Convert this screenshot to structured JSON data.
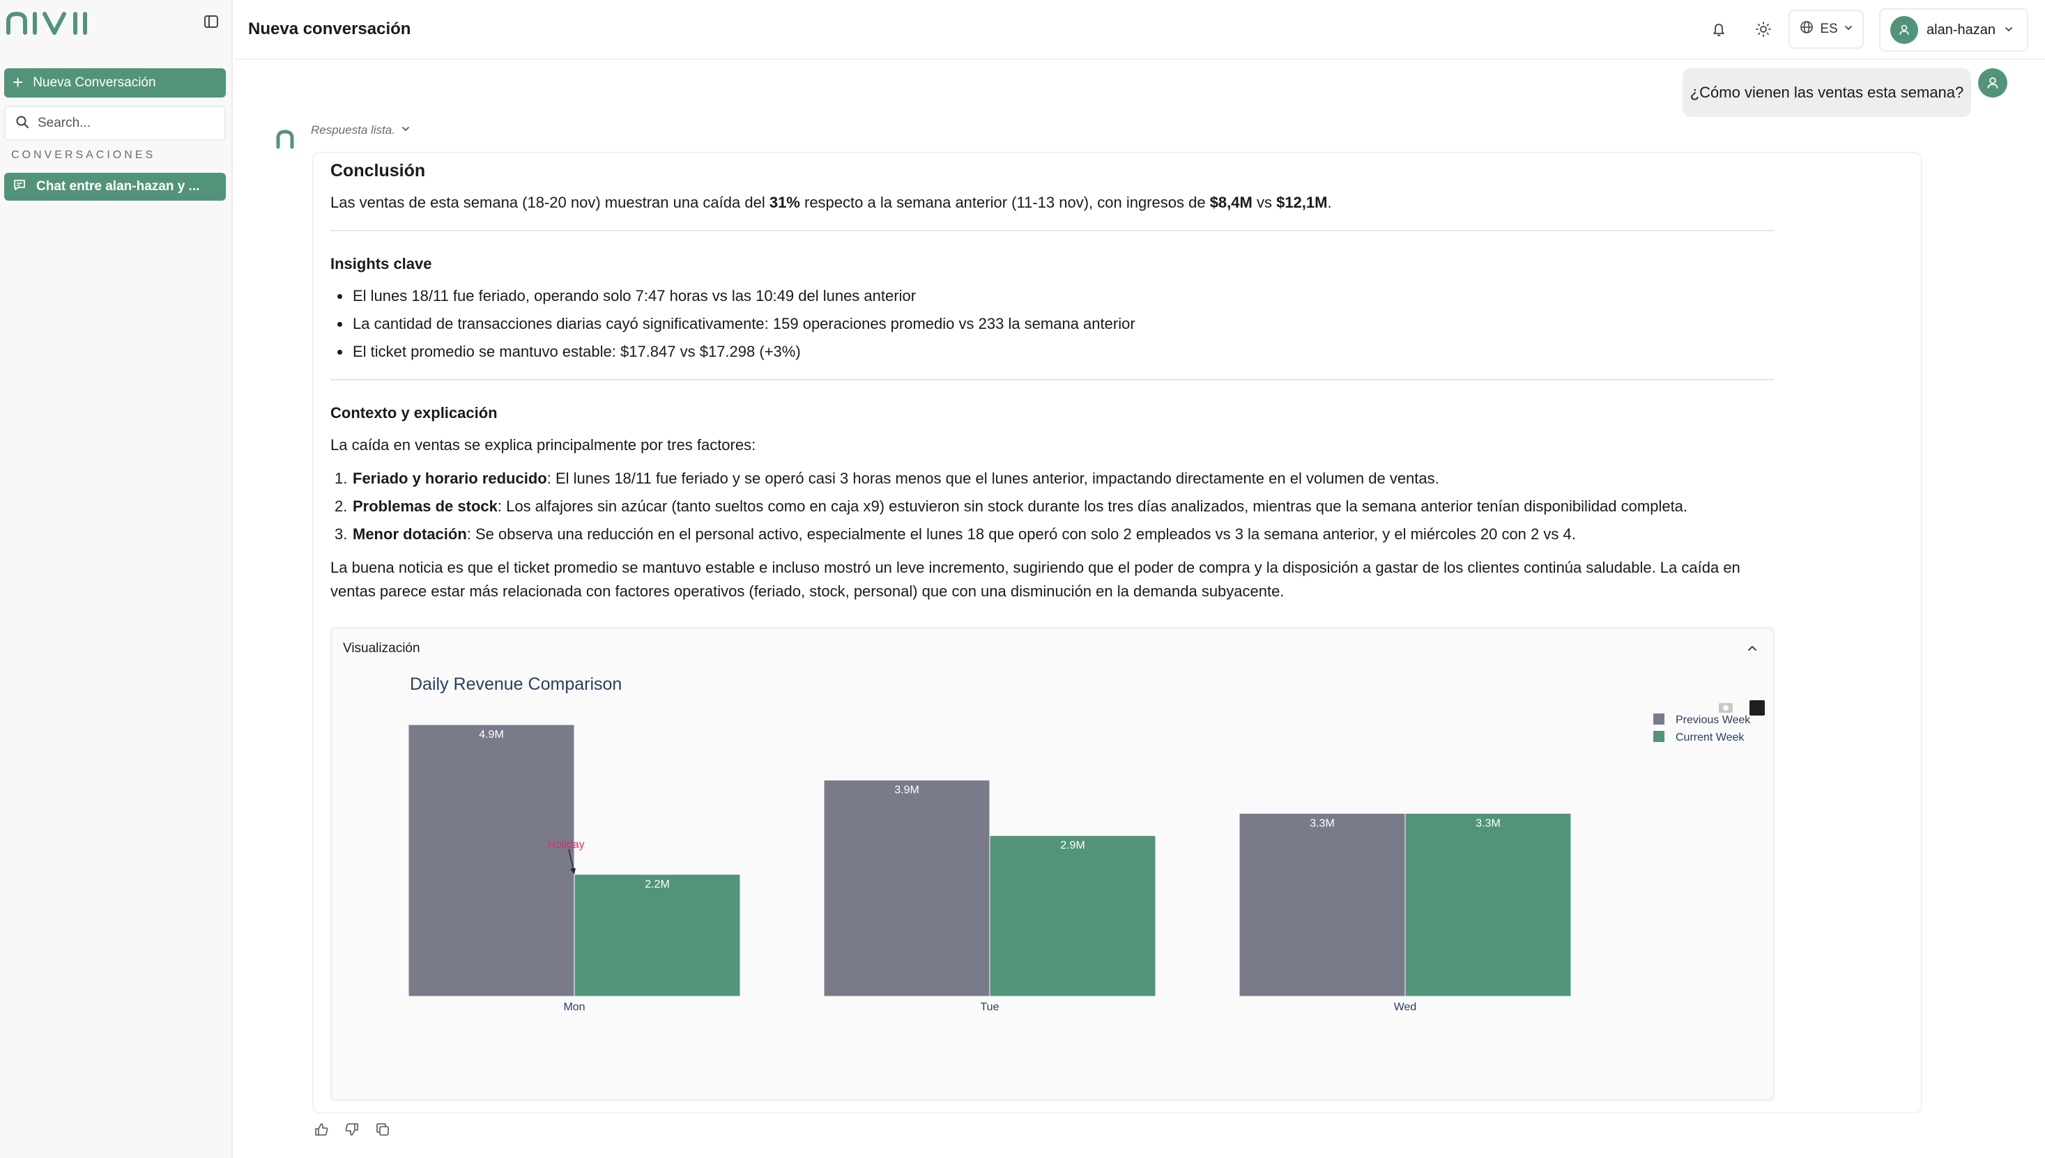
{
  "app": {
    "logo_text": "nivii",
    "accent_color": "#529479"
  },
  "sidebar": {
    "new_conversation_label": "Nueva Conversación",
    "search_placeholder": "Search...",
    "section_label": "CONVERSACIONES",
    "conversations": [
      {
        "label": "Chat entre alan-hazan y ..."
      }
    ]
  },
  "header": {
    "title": "Nueva conversación",
    "language": "ES",
    "username": "alan-hazan",
    "icons": [
      "bell-icon",
      "sun-icon",
      "globe-icon"
    ]
  },
  "chat": {
    "user_message": "¿Cómo vienen las ventas esta semana?",
    "bot_status": "Respuesta lista.",
    "answer": {
      "conclusion_title": "Conclusión",
      "conclusion_parts": {
        "a": "Las ventas de esta semana (18-20 nov) muestran una caída del ",
        "b": "31%",
        "c": " respecto a la semana anterior (11-13 nov), con ingresos de ",
        "d": "$8,4M",
        "e": " vs ",
        "f": "$12,1M",
        "g": "."
      },
      "insights_title": "Insights clave",
      "insights": [
        "El lunes 18/11 fue feriado, operando solo 7:47 horas vs las 10:49 del lunes anterior",
        "La cantidad de transacciones diarias cayó significativamente: 159 operaciones promedio vs 233 la semana anterior",
        "El ticket promedio se mantuvo estable: $17.847 vs $17.298 (+3%)"
      ],
      "context_title": "Contexto y explicación",
      "context_intro": "La caída en ventas se explica principalmente por tres factores:",
      "factors": [
        {
          "num": "1.",
          "title": "Feriado y horario reducido",
          "text": ": El lunes 18/11 fue feriado y se operó casi 3 horas menos que el lunes anterior, impactando directamente en el volumen de ventas."
        },
        {
          "num": "2.",
          "title": "Problemas de stock",
          "text": ": Los alfajores sin azúcar (tanto sueltos como en caja x9) estuvieron sin stock durante los tres días analizados, mientras que la semana anterior tenían disponibilidad completa."
        },
        {
          "num": "3.",
          "title": "Menor dotación",
          "text": ": Se observa una reducción en el personal activo, especialmente el lunes 18 que operó con solo 2 empleados vs 3 la semana anterior, y el miércoles 20 con 2 vs 4."
        }
      ],
      "closing": "La buena noticia es que el ticket promedio se mantuvo estable e incluso mostró un leve incremento, sugiriendo que el poder de compra y la disposición a gastar de los clientes continúa saludable. La caída en ventas parece estar más relacionada con factores operativos (feriado, stock, personal) que con una disminución en la demanda subyacente."
    },
    "visualization_label": "Visualización"
  },
  "chart_data": {
    "type": "bar",
    "title": "Daily Revenue Comparison",
    "categories": [
      "Mon",
      "Tue",
      "Wed"
    ],
    "series": [
      {
        "name": "Previous Week",
        "values": [
          4.9,
          3.9,
          3.3
        ],
        "labels": [
          "4.9M",
          "3.9M",
          "3.3M"
        ],
        "color": "#797b8b"
      },
      {
        "name": "Current Week",
        "values": [
          2.2,
          2.9,
          3.3
        ],
        "labels": [
          "2.2M",
          "2.9M",
          "3.3M"
        ],
        "color": "#529479"
      }
    ],
    "annotation": {
      "text": "Holiday",
      "category": "Mon",
      "series": "Current Week",
      "color": "#d6336c"
    },
    "ylim": [
      0,
      4.9
    ],
    "legend_position": "top-right",
    "grid": false,
    "xlabel": "",
    "ylabel": ""
  }
}
